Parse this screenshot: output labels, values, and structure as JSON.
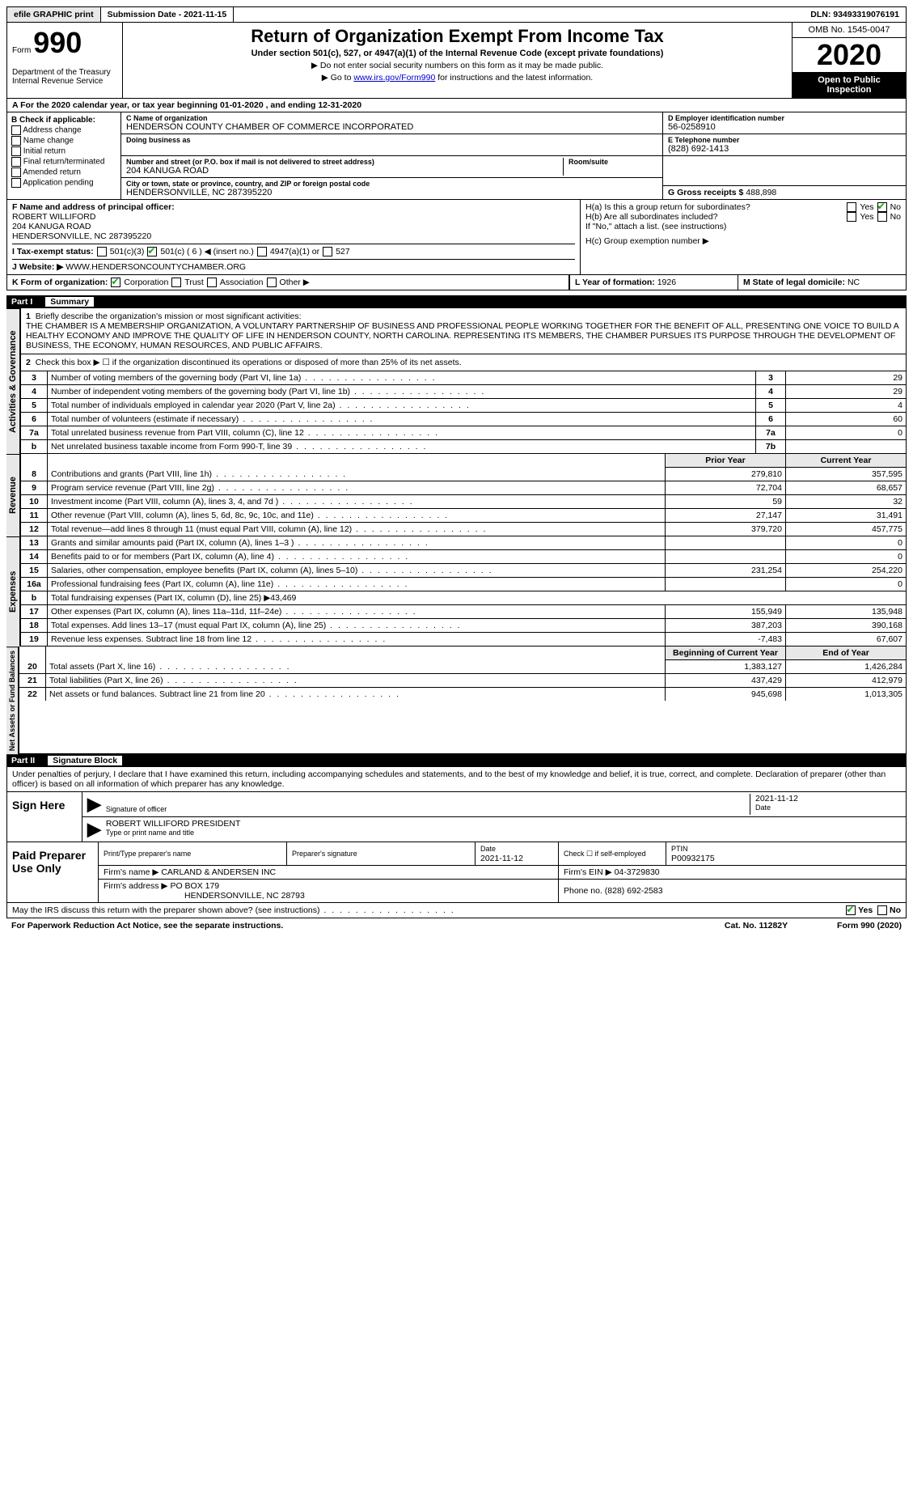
{
  "topbar": {
    "efile": "efile GRAPHIC print",
    "submission_label": "Submission Date - ",
    "submission_date": "2021-11-15",
    "dln_label": "DLN: ",
    "dln": "93493319076191"
  },
  "header": {
    "form_word": "Form",
    "form_no": "990",
    "dept": "Department of the Treasury\nInternal Revenue Service",
    "title": "Return of Organization Exempt From Income Tax",
    "subtitle": "Under section 501(c), 527, or 4947(a)(1) of the Internal Revenue Code (except private foundations)",
    "note1": "▶ Do not enter social security numbers on this form as it may be made public.",
    "note2_a": "▶ Go to ",
    "note2_link": "www.irs.gov/Form990",
    "note2_b": " for instructions and the latest information.",
    "omb": "OMB No. 1545-0047",
    "year": "2020",
    "open": "Open to Public Inspection"
  },
  "rowA": "A  For the 2020 calendar year, or tax year beginning 01-01-2020   , and ending 12-31-2020",
  "boxB": {
    "title": "B Check if applicable:",
    "items": [
      "Address change",
      "Name change",
      "Initial return",
      "Final return/terminated",
      "Amended return",
      "Application pending"
    ]
  },
  "boxC": {
    "name_lbl": "C Name of organization",
    "name": "HENDERSON COUNTY CHAMBER OF COMMERCE INCORPORATED",
    "dba_lbl": "Doing business as",
    "addr_lbl": "Number and street (or P.O. box if mail is not delivered to street address)",
    "addr": "204 KANUGA ROAD",
    "room_lbl": "Room/suite",
    "city_lbl": "City or town, state or province, country, and ZIP or foreign postal code",
    "city": "HENDERSONVILLE, NC  287395220"
  },
  "boxD": {
    "lbl": "D Employer identification number",
    "val": "56-0258910"
  },
  "boxE": {
    "lbl": "E Telephone number",
    "val": "(828) 692-1413"
  },
  "boxG": {
    "lbl": "G Gross receipts $ ",
    "val": "488,898"
  },
  "boxF": {
    "lbl": "F  Name and address of principal officer:",
    "name": "ROBERT WILLIFORD",
    "addr1": "204 KANUGA ROAD",
    "addr2": "HENDERSONVILLE, NC  287395220"
  },
  "boxH": {
    "a": "H(a)  Is this a group return for subordinates?",
    "b": "H(b)  Are all subordinates included?",
    "bnote": "If \"No,\" attach a list. (see instructions)",
    "c": "H(c)  Group exemption number ▶",
    "yes": "Yes",
    "no": "No"
  },
  "boxI": {
    "lbl": "I   Tax-exempt status:",
    "o1": "501(c)(3)",
    "o2": "501(c) ( 6 ) ◀ (insert no.)",
    "o3": "4947(a)(1) or",
    "o4": "527"
  },
  "boxJ": {
    "lbl": "J   Website: ▶ ",
    "val": "WWW.HENDERSONCOUNTYCHAMBER.ORG"
  },
  "boxK": {
    "lbl": "K Form of organization:",
    "o1": "Corporation",
    "o2": "Trust",
    "o3": "Association",
    "o4": "Other ▶"
  },
  "boxL": {
    "lbl": "L Year of formation: ",
    "val": "1926"
  },
  "boxM": {
    "lbl": "M State of legal domicile: ",
    "val": "NC"
  },
  "part1": {
    "hdr_l": "Part I",
    "hdr_r": "Summary",
    "l1": "Briefly describe the organization's mission or most significant activities:",
    "l1t": "THE CHAMBER IS A MEMBERSHIP ORGANIZATION, A VOLUNTARY PARTNERSHIP OF BUSINESS AND PROFESSIONAL PEOPLE WORKING TOGETHER FOR THE BENEFIT OF ALL, PRESENTING ONE VOICE TO BUILD A HEALTHY ECONOMY AND IMPROVE THE QUALITY OF LIFE IN HENDERSON COUNTY, NORTH CAROLINA. REPRESENTING ITS MEMBERS, THE CHAMBER PURSUES ITS PURPOSE THROUGH THE DEVELOPMENT OF BUSINESS, THE ECONOMY, HUMAN RESOURCES, AND PUBLIC AFFAIRS.",
    "l2": "Check this box ▶ ☐  if the organization discontinued its operations or disposed of more than 25% of its net assets.",
    "rows_ag": [
      {
        "n": "3",
        "t": "Number of voting members of the governing body (Part VI, line 1a)",
        "r": "3",
        "v": "29"
      },
      {
        "n": "4",
        "t": "Number of independent voting members of the governing body (Part VI, line 1b)",
        "r": "4",
        "v": "29"
      },
      {
        "n": "5",
        "t": "Total number of individuals employed in calendar year 2020 (Part V, line 2a)",
        "r": "5",
        "v": "4"
      },
      {
        "n": "6",
        "t": "Total number of volunteers (estimate if necessary)",
        "r": "6",
        "v": "60"
      },
      {
        "n": "7a",
        "t": "Total unrelated business revenue from Part VIII, column (C), line 12",
        "r": "7a",
        "v": "0"
      },
      {
        "n": "b",
        "t": "Net unrelated business taxable income from Form 990-T, line 39",
        "r": "7b",
        "v": ""
      }
    ],
    "prior": "Prior Year",
    "current": "Current Year",
    "rows_rev": [
      {
        "n": "8",
        "t": "Contributions and grants (Part VIII, line 1h)",
        "p": "279,810",
        "c": "357,595"
      },
      {
        "n": "9",
        "t": "Program service revenue (Part VIII, line 2g)",
        "p": "72,704",
        "c": "68,657"
      },
      {
        "n": "10",
        "t": "Investment income (Part VIII, column (A), lines 3, 4, and 7d )",
        "p": "59",
        "c": "32"
      },
      {
        "n": "11",
        "t": "Other revenue (Part VIII, column (A), lines 5, 6d, 8c, 9c, 10c, and 11e)",
        "p": "27,147",
        "c": "31,491"
      },
      {
        "n": "12",
        "t": "Total revenue—add lines 8 through 11 (must equal Part VIII, column (A), line 12)",
        "p": "379,720",
        "c": "457,775"
      }
    ],
    "rows_exp": [
      {
        "n": "13",
        "t": "Grants and similar amounts paid (Part IX, column (A), lines 1–3 )",
        "p": "",
        "c": "0"
      },
      {
        "n": "14",
        "t": "Benefits paid to or for members (Part IX, column (A), line 4)",
        "p": "",
        "c": "0"
      },
      {
        "n": "15",
        "t": "Salaries, other compensation, employee benefits (Part IX, column (A), lines 5–10)",
        "p": "231,254",
        "c": "254,220"
      },
      {
        "n": "16a",
        "t": "Professional fundraising fees (Part IX, column (A), line 11e)",
        "p": "",
        "c": "0"
      },
      {
        "n": "b",
        "t": "Total fundraising expenses (Part IX, column (D), line 25) ▶43,469",
        "p": "—",
        "c": "—"
      },
      {
        "n": "17",
        "t": "Other expenses (Part IX, column (A), lines 11a–11d, 11f–24e)",
        "p": "155,949",
        "c": "135,948"
      },
      {
        "n": "18",
        "t": "Total expenses. Add lines 13–17 (must equal Part IX, column (A), line 25)",
        "p": "387,203",
        "c": "390,168"
      },
      {
        "n": "19",
        "t": "Revenue less expenses. Subtract line 18 from line 12",
        "p": "-7,483",
        "c": "67,607"
      }
    ],
    "beg": "Beginning of Current Year",
    "end": "End of Year",
    "rows_na": [
      {
        "n": "20",
        "t": "Total assets (Part X, line 16)",
        "p": "1,383,127",
        "c": "1,426,284"
      },
      {
        "n": "21",
        "t": "Total liabilities (Part X, line 26)",
        "p": "437,429",
        "c": "412,979"
      },
      {
        "n": "22",
        "t": "Net assets or fund balances. Subtract line 21 from line 20",
        "p": "945,698",
        "c": "1,013,305"
      }
    ],
    "tabs": {
      "ag": "Activities & Governance",
      "rev": "Revenue",
      "exp": "Expenses",
      "na": "Net Assets or Fund Balances"
    }
  },
  "part2": {
    "hdr_l": "Part II",
    "hdr_r": "Signature Block",
    "decl": "Under penalties of perjury, I declare that I have examined this return, including accompanying schedules and statements, and to the best of my knowledge and belief, it is true, correct, and complete. Declaration of preparer (other than officer) is based on all information of which preparer has any knowledge.",
    "sign_here": "Sign Here",
    "sig_officer": "Signature of officer",
    "sig_date": "2021-11-12",
    "date_lbl": "Date",
    "officer": "ROBERT WILLIFORD PRESIDENT",
    "type_name": "Type or print name and title",
    "paid": "Paid Preparer Use Only",
    "col_prep": "Print/Type preparer's name",
    "col_sig": "Preparer's signature",
    "col_date": "Date",
    "col_date_v": "2021-11-12",
    "col_self": "Check ☐ if self-employed",
    "col_ptin": "PTIN",
    "ptin": "P00932175",
    "firm_name_lbl": "Firm's name    ▶ ",
    "firm_name": "CARLAND & ANDERSEN INC",
    "firm_ein_lbl": "Firm's EIN ▶ ",
    "firm_ein": "04-3729830",
    "firm_addr_lbl": "Firm's address ▶ ",
    "firm_addr": "PO BOX 179",
    "firm_city": "HENDERSONVILLE, NC  28793",
    "phone_lbl": "Phone no. ",
    "phone": "(828) 692-2583",
    "discuss": "May the IRS discuss this return with the preparer shown above? (see instructions)",
    "yes": "Yes",
    "no": "No"
  },
  "footer": {
    "l": "For Paperwork Reduction Act Notice, see the separate instructions.",
    "c": "Cat. No. 11282Y",
    "r": "Form 990 (2020)"
  }
}
